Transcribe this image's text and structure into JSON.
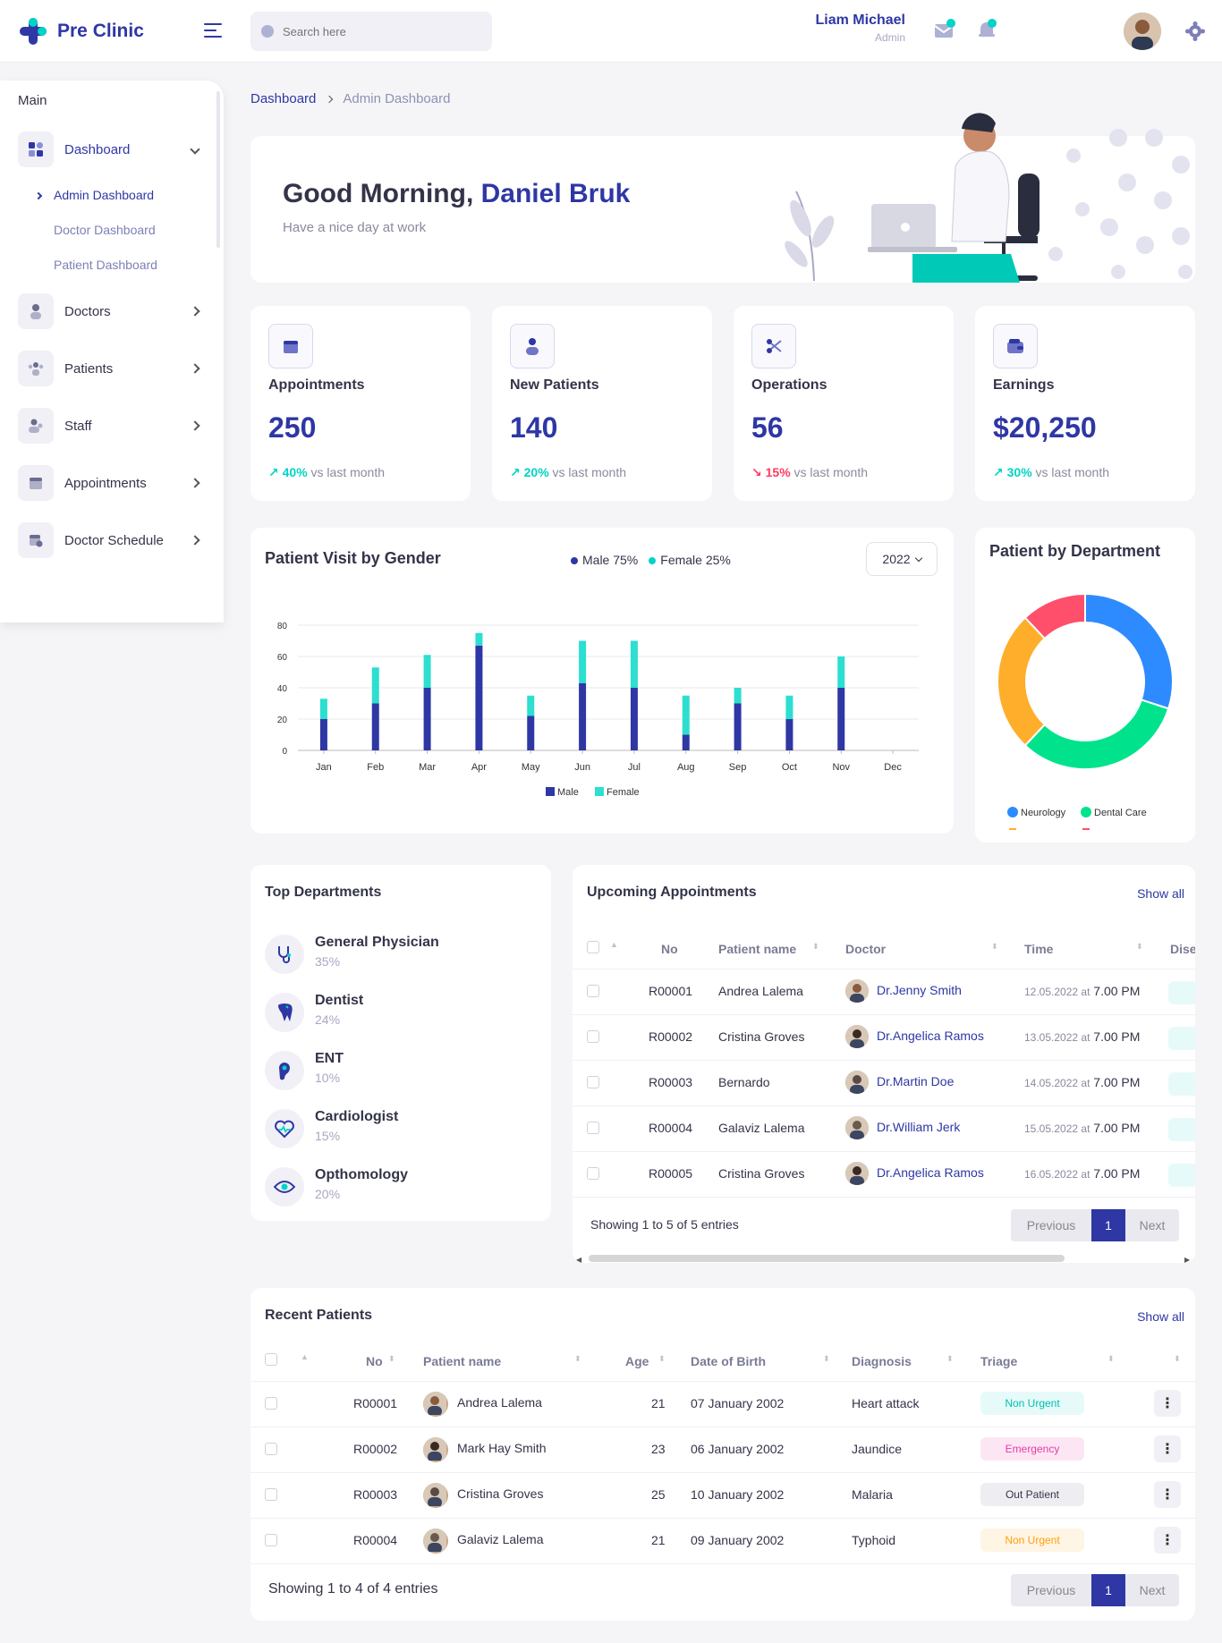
{
  "header": {
    "brand": "Pre Clinic",
    "search_placeholder": "Search here",
    "user_name": "Liam Michael",
    "user_role": "Admin"
  },
  "sidebar": {
    "section": "Main",
    "items": [
      {
        "label": "Dashboard",
        "icon": "dashboard-icon"
      },
      {
        "label": "Doctors",
        "icon": "doctor-icon"
      },
      {
        "label": "Patients",
        "icon": "patients-icon"
      },
      {
        "label": "Staff",
        "icon": "staff-icon"
      },
      {
        "label": "Appointments",
        "icon": "calendar-icon"
      },
      {
        "label": "Doctor Schedule",
        "icon": "schedule-icon"
      }
    ],
    "sub": [
      "Admin Dashboard",
      "Doctor Dashboard",
      "Patient Dashboard"
    ]
  },
  "breadcrumb": {
    "root": "Dashboard",
    "current": "Admin Dashboard"
  },
  "greeting": {
    "prefix": "Good Morning,",
    "name": "Daniel Bruk",
    "sub": "Have a nice day at work"
  },
  "stats": [
    {
      "title": "Appointments",
      "value": "250",
      "pct": "40%",
      "trend": "up",
      "suffix": "vs last month"
    },
    {
      "title": "New Patients",
      "value": "140",
      "pct": "20%",
      "trend": "up",
      "suffix": "vs last month"
    },
    {
      "title": "Operations",
      "value": "56",
      "pct": "15%",
      "trend": "down",
      "suffix": "vs last month"
    },
    {
      "title": "Earnings",
      "value": "$20,250",
      "pct": "30%",
      "trend": "up",
      "suffix": "vs last month"
    }
  ],
  "visit_chart": {
    "title": "Patient Visit by Gender",
    "legend_male": "Male 75%",
    "legend_female": "Female 25%",
    "year": "2022"
  },
  "dept_chart": {
    "title": "Patient by Department",
    "legend": [
      "Neurology",
      "Dental Care"
    ]
  },
  "chart_data": [
    {
      "type": "bar",
      "stacked": true,
      "title": "Patient Visit by Gender",
      "categories": [
        "Jan",
        "Feb",
        "Mar",
        "Apr",
        "May",
        "Jun",
        "Jul",
        "Aug",
        "Sep",
        "Oct",
        "Nov",
        "Dec"
      ],
      "series": [
        {
          "name": "Male",
          "color": "#2e37a4",
          "values": [
            20,
            30,
            40,
            67,
            22,
            43,
            40,
            10,
            30,
            20,
            40,
            0
          ]
        },
        {
          "name": "Female",
          "color": "#2cdfd0",
          "values": [
            13,
            23,
            21,
            8,
            13,
            27,
            30,
            25,
            10,
            15,
            20,
            0
          ]
        }
      ],
      "ylim": [
        0,
        80
      ],
      "yticks": [
        0,
        20,
        40,
        60,
        80
      ],
      "grid": true,
      "legend": "bottom"
    },
    {
      "type": "pie",
      "donut": true,
      "title": "Patient by Department",
      "slices": [
        {
          "name": "Neurology",
          "value": 30,
          "color": "#2e8bff"
        },
        {
          "name": "Dental Care",
          "value": 32,
          "color": "#00e38c"
        },
        {
          "name": "",
          "value": 26,
          "color": "#ffae2b"
        },
        {
          "name": "",
          "value": 12,
          "color": "#ff4f6b"
        }
      ],
      "legend": "bottom"
    }
  ],
  "top_departments": {
    "title": "Top Departments",
    "items": [
      {
        "name": "General Physician",
        "pct": "35%",
        "icon": "stethoscope-icon"
      },
      {
        "name": "Dentist",
        "pct": "24%",
        "icon": "tooth-icon"
      },
      {
        "name": "ENT",
        "pct": "10%",
        "icon": "ear-icon"
      },
      {
        "name": "Cardiologist",
        "pct": "15%",
        "icon": "heart-icon"
      },
      {
        "name": "Opthomology",
        "pct": "20%",
        "icon": "eye-icon"
      }
    ]
  },
  "appointments": {
    "title": "Upcoming Appointments",
    "show_all": "Show all",
    "cols": [
      "No",
      "Patient name",
      "Doctor",
      "Time",
      "Dise"
    ],
    "rows": [
      {
        "no": "R00001",
        "patient": "Andrea Lalema",
        "doctor": "Dr.Jenny Smith",
        "date": "12.05.2022 at",
        "time": "7.00 PM"
      },
      {
        "no": "R00002",
        "patient": "Cristina Groves",
        "doctor": "Dr.Angelica Ramos",
        "date": "13.05.2022 at",
        "time": "7.00 PM"
      },
      {
        "no": "R00003",
        "patient": "Bernardo",
        "doctor": "Dr.Martin Doe",
        "date": "14.05.2022 at",
        "time": "7.00 PM"
      },
      {
        "no": "R00004",
        "patient": "Galaviz Lalema",
        "doctor": "Dr.William Jerk",
        "date": "15.05.2022 at",
        "time": "7.00 PM"
      },
      {
        "no": "R00005",
        "patient": "Cristina Groves",
        "doctor": "Dr.Angelica Ramos",
        "date": "16.05.2022 at",
        "time": "7.00 PM"
      }
    ],
    "footer": "Showing 1 to 5 of 5 entries",
    "prev": "Previous",
    "page": "1",
    "next": "Next"
  },
  "recent": {
    "title": "Recent Patients",
    "show_all": "Show all",
    "cols": [
      "No",
      "Patient name",
      "Age",
      "Date of Birth",
      "Diagnosis",
      "Triage"
    ],
    "rows": [
      {
        "no": "R00001",
        "patient": "Andrea Lalema",
        "age": "21",
        "dob": "07 January 2002",
        "diag": "Heart attack",
        "triage": "Non Urgent",
        "tbg": "#e6fbf9",
        "tfg": "#00bfae"
      },
      {
        "no": "R00002",
        "patient": "Mark Hay Smith",
        "age": "23",
        "dob": "06 January 2002",
        "diag": "Jaundice",
        "triage": "Emergency",
        "tbg": "#fde6f4",
        "tfg": "#e23ca3"
      },
      {
        "no": "R00003",
        "patient": "Cristina Groves",
        "age": "25",
        "dob": "10 January 2002",
        "diag": "Malaria",
        "triage": "Out Patient",
        "tbg": "#eeeef2",
        "tfg": "#333448"
      },
      {
        "no": "R00004",
        "patient": "Galaviz Lalema",
        "age": "21",
        "dob": "09 January 2002",
        "diag": "Typhoid",
        "triage": "Non Urgent",
        "tbg": "#fff5e5",
        "tfg": "#ff9f0a"
      }
    ],
    "footer": "Showing 1 to 4 of 4 entries",
    "prev": "Previous",
    "page": "1",
    "next": "Next"
  }
}
